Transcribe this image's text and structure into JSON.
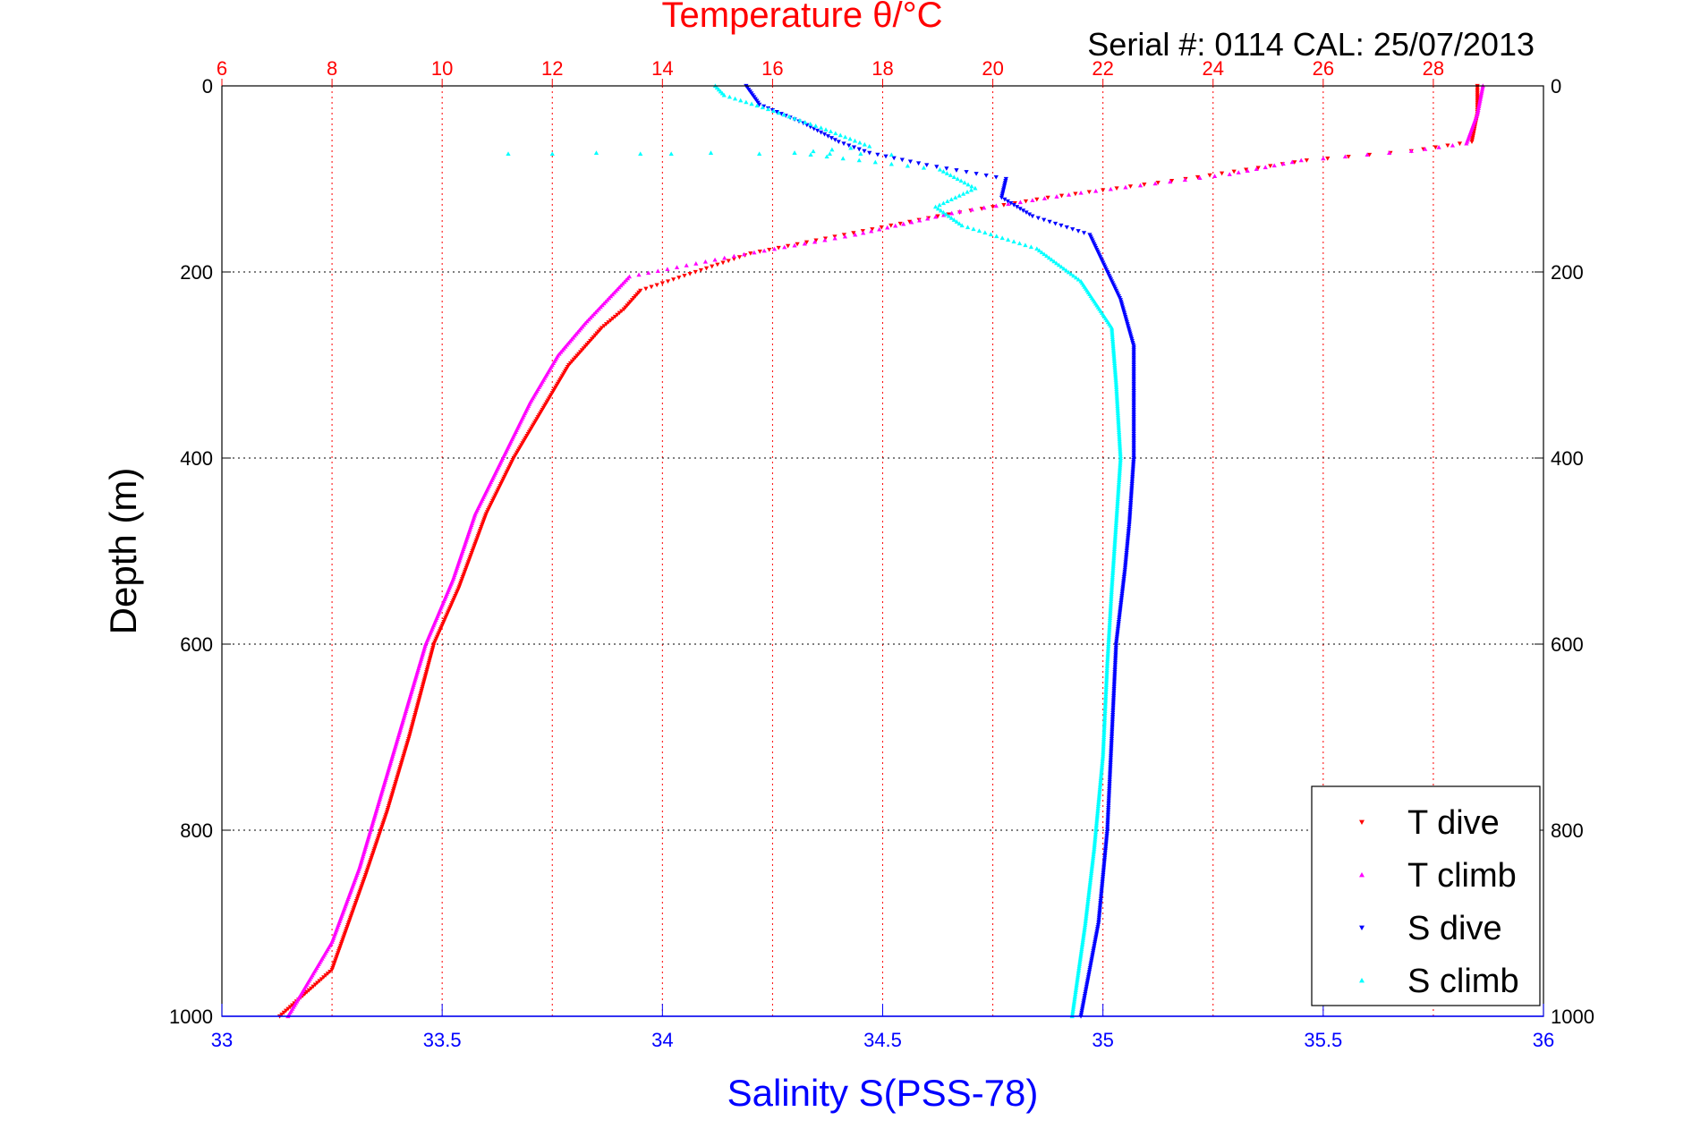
{
  "chart_data": {
    "type": "scatter",
    "title": "Temperature θ/°C",
    "subtitle": "Serial #: 0114  CAL: 25/07/2013",
    "ylabel": "Depth (m)",
    "xlabel": "Salinity S(PSS-78)",
    "top_axis": {
      "label": "Temperature θ/°C",
      "range": [
        6,
        30
      ],
      "ticks": [
        6,
        8,
        10,
        12,
        14,
        16,
        18,
        20,
        22,
        24,
        26,
        28
      ],
      "color": "#ff0000",
      "grid": true
    },
    "bottom_axis": {
      "label": "Salinity S(PSS-78)",
      "range": [
        33,
        36
      ],
      "ticks": [
        33,
        33.5,
        34,
        34.5,
        35,
        35.5,
        36
      ],
      "tick_labels": [
        "33",
        "33.5",
        "34",
        "34.5",
        "35",
        "35.5",
        "36"
      ],
      "color": "#0000ff"
    },
    "y_axis": {
      "label": "Depth (m)",
      "range": [
        0,
        1000
      ],
      "reversed": true,
      "ticks": [
        0,
        200,
        400,
        600,
        800,
        1000
      ],
      "grid": true
    },
    "legend": {
      "position": "bottom-right",
      "entries": [
        "T dive",
        "T climb",
        "S dive",
        "S climb"
      ]
    },
    "series": [
      {
        "name": "T dive",
        "axis": "temperature",
        "color": "#ff0000",
        "marker": "triangle-down",
        "points": [
          [
            28.8,
            0
          ],
          [
            28.8,
            30
          ],
          [
            28.7,
            60
          ],
          [
            27.6,
            70
          ],
          [
            25.7,
            80
          ],
          [
            23.5,
            100
          ],
          [
            21.0,
            120
          ],
          [
            19.0,
            140
          ],
          [
            17.3,
            160
          ],
          [
            15.6,
            180
          ],
          [
            14.6,
            200
          ],
          [
            13.6,
            220
          ],
          [
            13.3,
            240
          ],
          [
            12.9,
            260
          ],
          [
            12.3,
            300
          ],
          [
            11.9,
            340
          ],
          [
            11.3,
            400
          ],
          [
            10.8,
            460
          ],
          [
            10.3,
            540
          ],
          [
            9.85,
            600
          ],
          [
            9.4,
            700
          ],
          [
            9.0,
            780
          ],
          [
            8.6,
            850
          ],
          [
            8.0,
            950
          ],
          [
            7.05,
            1000
          ]
        ]
      },
      {
        "name": "T climb",
        "axis": "temperature",
        "color": "#ff00ff",
        "marker": "triangle-up",
        "points": [
          [
            28.9,
            0
          ],
          [
            28.8,
            30
          ],
          [
            28.6,
            62
          ],
          [
            27.6,
            70
          ],
          [
            25.6,
            80
          ],
          [
            24.3,
            95
          ],
          [
            21.6,
            115
          ],
          [
            19.4,
            135
          ],
          [
            17.5,
            160
          ],
          [
            15.3,
            183
          ],
          [
            13.4,
            205
          ],
          [
            13.0,
            230
          ],
          [
            12.6,
            255
          ],
          [
            12.1,
            290
          ],
          [
            11.6,
            340
          ],
          [
            11.1,
            400
          ],
          [
            10.6,
            460
          ],
          [
            10.2,
            530
          ],
          [
            9.7,
            600
          ],
          [
            9.3,
            680
          ],
          [
            8.9,
            760
          ],
          [
            8.5,
            840
          ],
          [
            8.0,
            920
          ],
          [
            7.2,
            1000
          ]
        ]
      },
      {
        "name": "S dive",
        "axis": "salinity",
        "color": "#0000ff",
        "marker": "triangle-down",
        "points": [
          [
            34.19,
            0
          ],
          [
            34.22,
            20
          ],
          [
            34.32,
            40
          ],
          [
            34.4,
            60
          ],
          [
            34.47,
            72
          ],
          [
            34.6,
            85
          ],
          [
            34.78,
            100
          ],
          [
            34.77,
            120
          ],
          [
            34.84,
            140
          ],
          [
            34.97,
            160
          ],
          [
            35.0,
            190
          ],
          [
            35.04,
            230
          ],
          [
            35.07,
            280
          ],
          [
            35.07,
            340
          ],
          [
            35.07,
            400
          ],
          [
            35.06,
            470
          ],
          [
            35.05,
            520
          ],
          [
            35.03,
            600
          ],
          [
            35.02,
            700
          ],
          [
            35.01,
            800
          ],
          [
            34.99,
            900
          ],
          [
            34.95,
            1000
          ]
        ]
      },
      {
        "name": "S climb",
        "axis": "salinity",
        "color": "#00ffff",
        "marker": "triangle-up",
        "points": [
          [
            34.12,
            0
          ],
          [
            34.14,
            10
          ],
          [
            34.24,
            25
          ],
          [
            34.36,
            45
          ],
          [
            34.47,
            65
          ],
          [
            34.3,
            72
          ],
          [
            34.63,
            90
          ],
          [
            34.71,
            110
          ],
          [
            34.62,
            130
          ],
          [
            34.68,
            150
          ],
          [
            34.85,
            175
          ],
          [
            34.95,
            210
          ],
          [
            35.02,
            260
          ],
          [
            35.03,
            320
          ],
          [
            35.04,
            400
          ],
          [
            35.03,
            470
          ],
          [
            35.02,
            540
          ],
          [
            35.01,
            620
          ],
          [
            35.0,
            720
          ],
          [
            34.98,
            820
          ],
          [
            34.96,
            900
          ],
          [
            34.93,
            1000
          ]
        ]
      },
      {
        "name": "S climb outliers",
        "axis": "salinity",
        "color": "#00ffff",
        "marker": "triangle-up",
        "legend": false,
        "points": [
          [
            33.65,
            73
          ],
          [
            33.75,
            73
          ],
          [
            33.85,
            72
          ],
          [
            33.95,
            73
          ],
          [
            34.02,
            73
          ],
          [
            34.11,
            72
          ],
          [
            34.22,
            73
          ],
          [
            34.3,
            72
          ],
          [
            34.38,
            73
          ],
          [
            34.45,
            73
          ],
          [
            34.52,
            74
          ]
        ]
      }
    ]
  }
}
